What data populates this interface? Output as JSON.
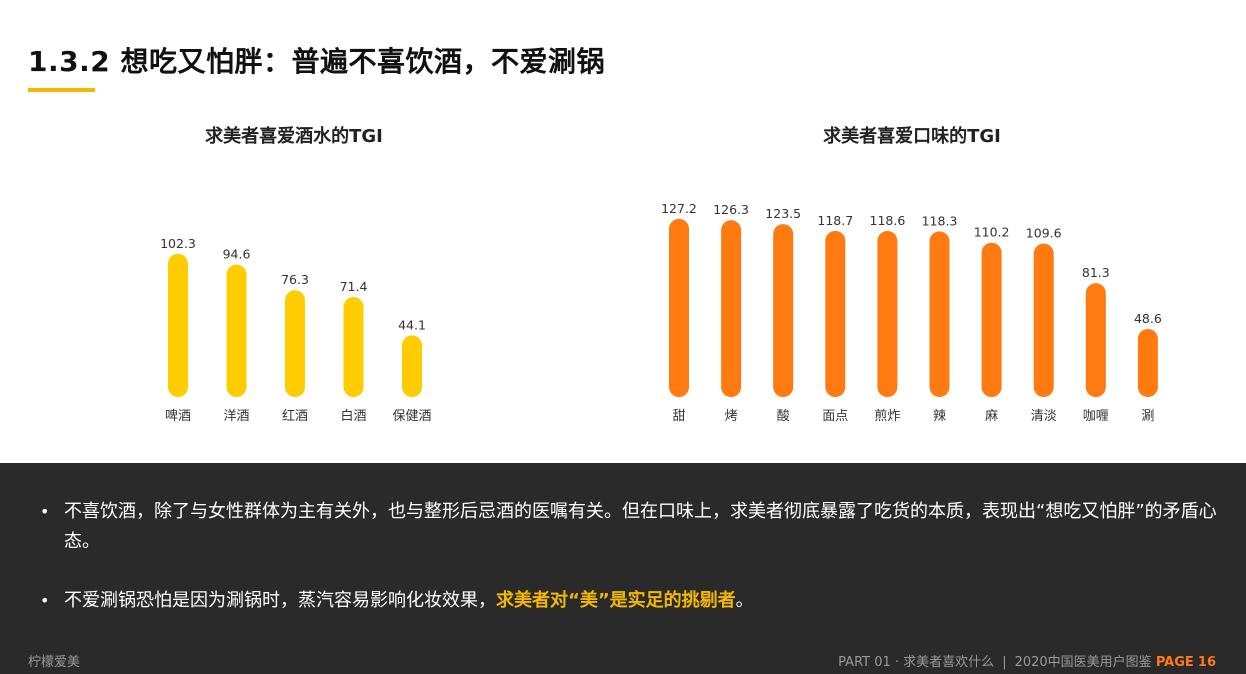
{
  "header": {
    "title": "1.3.2 想吃又怕胖：普遍不喜饮酒，不爱涮锅",
    "accent_color": "#f5b800"
  },
  "chart_data": [
    {
      "type": "bar",
      "title": "求美者喜爱酒水的TGI",
      "categories": [
        "啤酒",
        "洋酒",
        "红酒",
        "白酒",
        "保健酒"
      ],
      "values": [
        102.3,
        94.6,
        76.3,
        71.4,
        44.1
      ],
      "value_labels": [
        "102.3",
        "94.6",
        "76.3",
        "71.4",
        "44.1"
      ],
      "color": "#ffcc00",
      "xlabel": "",
      "ylabel": "",
      "ylim": [
        0,
        130
      ],
      "grid": false
    },
    {
      "type": "bar",
      "title": "求美者喜爱口味的TGI",
      "categories": [
        "甜",
        "烤",
        "酸",
        "面点",
        "煎炸",
        "辣",
        "麻",
        "清淡",
        "咖喱",
        "涮"
      ],
      "values": [
        127.2,
        126.3,
        123.5,
        118.7,
        118.6,
        118.3,
        110.2,
        109.6,
        81.3,
        48.6
      ],
      "value_labels": [
        "127.2",
        "126.3",
        "123.5",
        "118.7",
        "118.6",
        "118.3",
        "110.2",
        "109.6",
        "81.3",
        "48.6"
      ],
      "color": "#ff7a10",
      "xlabel": "",
      "ylabel": "",
      "ylim": [
        0,
        130
      ],
      "grid": false
    }
  ],
  "notes": {
    "bullet_1": "不喜饮酒，除了与女性群体为主有关外，也与整形后忌酒的医嘱有关。但在口味上，求美者彻底暴露了吃货的本质，表现出“想吃又怕胖”的矛盾心态。",
    "bullet_2_plain": "不爱涮锅恐怕是因为涮锅时，蒸汽容易影响化妆效果，",
    "bullet_2_highlight": "求美者对“美”是实足的挑剔者",
    "bullet_2_end": "。",
    "bullet_symbol": "•"
  },
  "footer": {
    "brand": "柠檬爱美",
    "part": "PART 01 · 求美者喜欢什么",
    "separator": "|",
    "report": "2020中国医美用户图鉴",
    "page_label": "PAGE",
    "page_number": "16",
    "page_color": "#ff7a1a"
  }
}
